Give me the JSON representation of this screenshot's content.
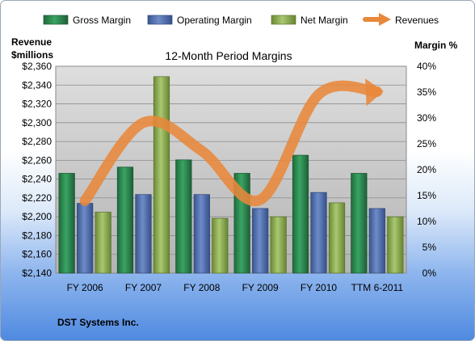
{
  "chart_data": {
    "type": "bar",
    "title": "12-Month Period Margins",
    "footer": "DST Systems Inc.",
    "left_axis_label_line1": "Revenue",
    "left_axis_label_line2": "$millions",
    "right_axis_label": "Margin %",
    "categories": [
      "FY 2006",
      "FY 2007",
      "FY 2008",
      "FY 2009",
      "FY 2010",
      "TTM 6-2011"
    ],
    "left_ticks": [
      "$2,140",
      "$2,160",
      "$2,180",
      "$2,200",
      "$2,220",
      "$2,240",
      "$2,260",
      "$2,280",
      "$2,300",
      "$2,320",
      "$2,340",
      "$2,360"
    ],
    "right_ticks": [
      "0%",
      "5%",
      "10%",
      "15%",
      "20%",
      "25%",
      "30%",
      "35%",
      "40%"
    ],
    "ylim_left": [
      2140,
      2360
    ],
    "ylim_right": [
      0,
      40
    ],
    "grid": true,
    "legend_position": "top",
    "series": [
      {
        "name": "Gross Margin",
        "axis": "right",
        "color": "#2e8b57",
        "values": [
          19.3,
          20.5,
          21.9,
          19.3,
          22.8,
          19.3
        ]
      },
      {
        "name": "Operating Margin",
        "axis": "right",
        "color": "#4f6fb0",
        "values": [
          13.5,
          15.2,
          15.2,
          12.5,
          15.6,
          12.5
        ]
      },
      {
        "name": "Net Margin",
        "axis": "right",
        "color": "#8db050",
        "values": [
          11.8,
          38.0,
          10.6,
          10.9,
          13.6,
          10.9
        ]
      },
      {
        "name": "Revenues",
        "axis": "left",
        "type": "line",
        "color": "#e8883a",
        "values": [
          2217,
          2300,
          2270,
          2218,
          2330,
          2333
        ]
      }
    ]
  }
}
